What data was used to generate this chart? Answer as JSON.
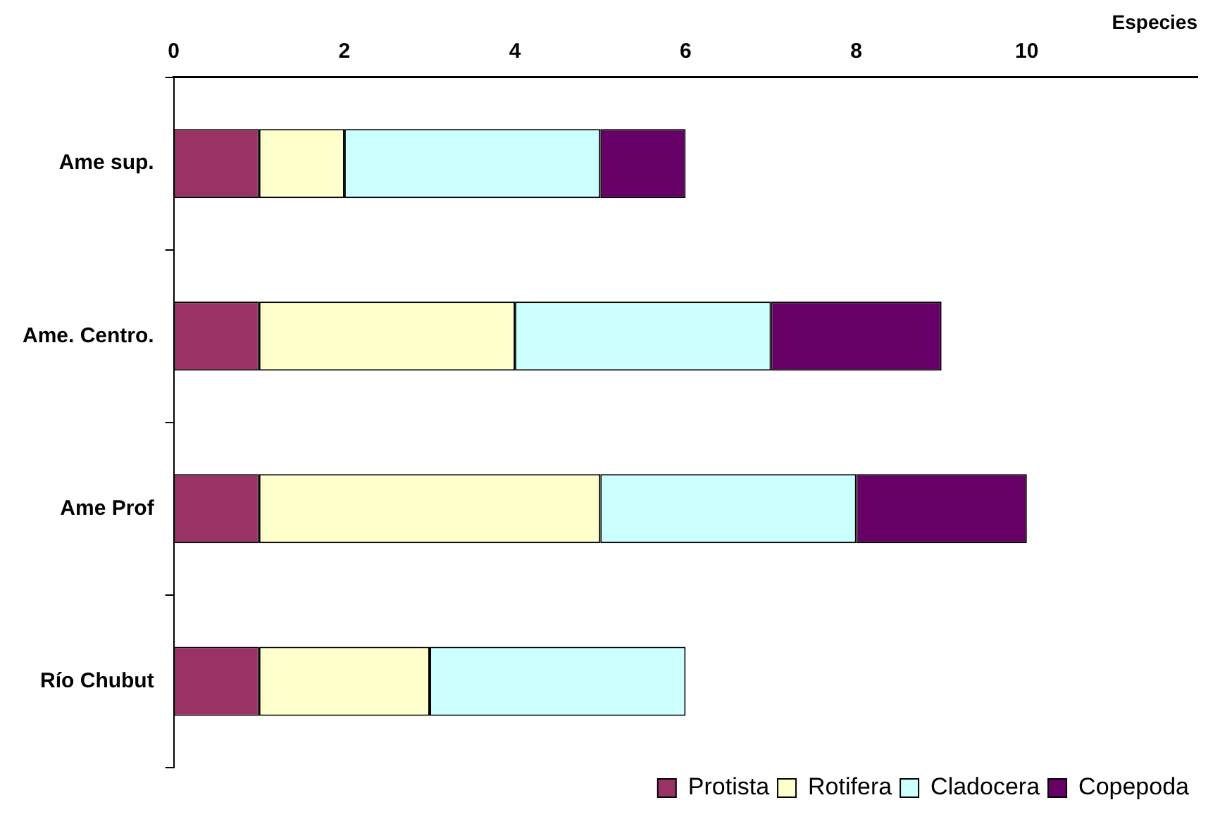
{
  "chart_data": {
    "type": "bar",
    "orientation": "horizontal",
    "stacked": true,
    "xlabel": "Especies",
    "categories": [
      "Ame sup.",
      "Ame. Centro.",
      "Ame Prof",
      "Río Chubut"
    ],
    "series": [
      {
        "name": "Protista",
        "color": "#993366",
        "values": [
          1,
          1,
          1,
          1
        ]
      },
      {
        "name": "Rotifera",
        "color": "#ffffcc",
        "values": [
          1,
          3,
          4,
          2
        ]
      },
      {
        "name": "Cladocera",
        "color": "#ccffff",
        "values": [
          3,
          3,
          3,
          3
        ]
      },
      {
        "name": "Copepoda",
        "color": "#660066",
        "values": [
          1,
          2,
          2,
          null
        ]
      }
    ],
    "xlim": [
      0,
      12
    ],
    "xticks": [
      0,
      2,
      4,
      6,
      8,
      10
    ],
    "grid": false,
    "legend": "bottom"
  }
}
